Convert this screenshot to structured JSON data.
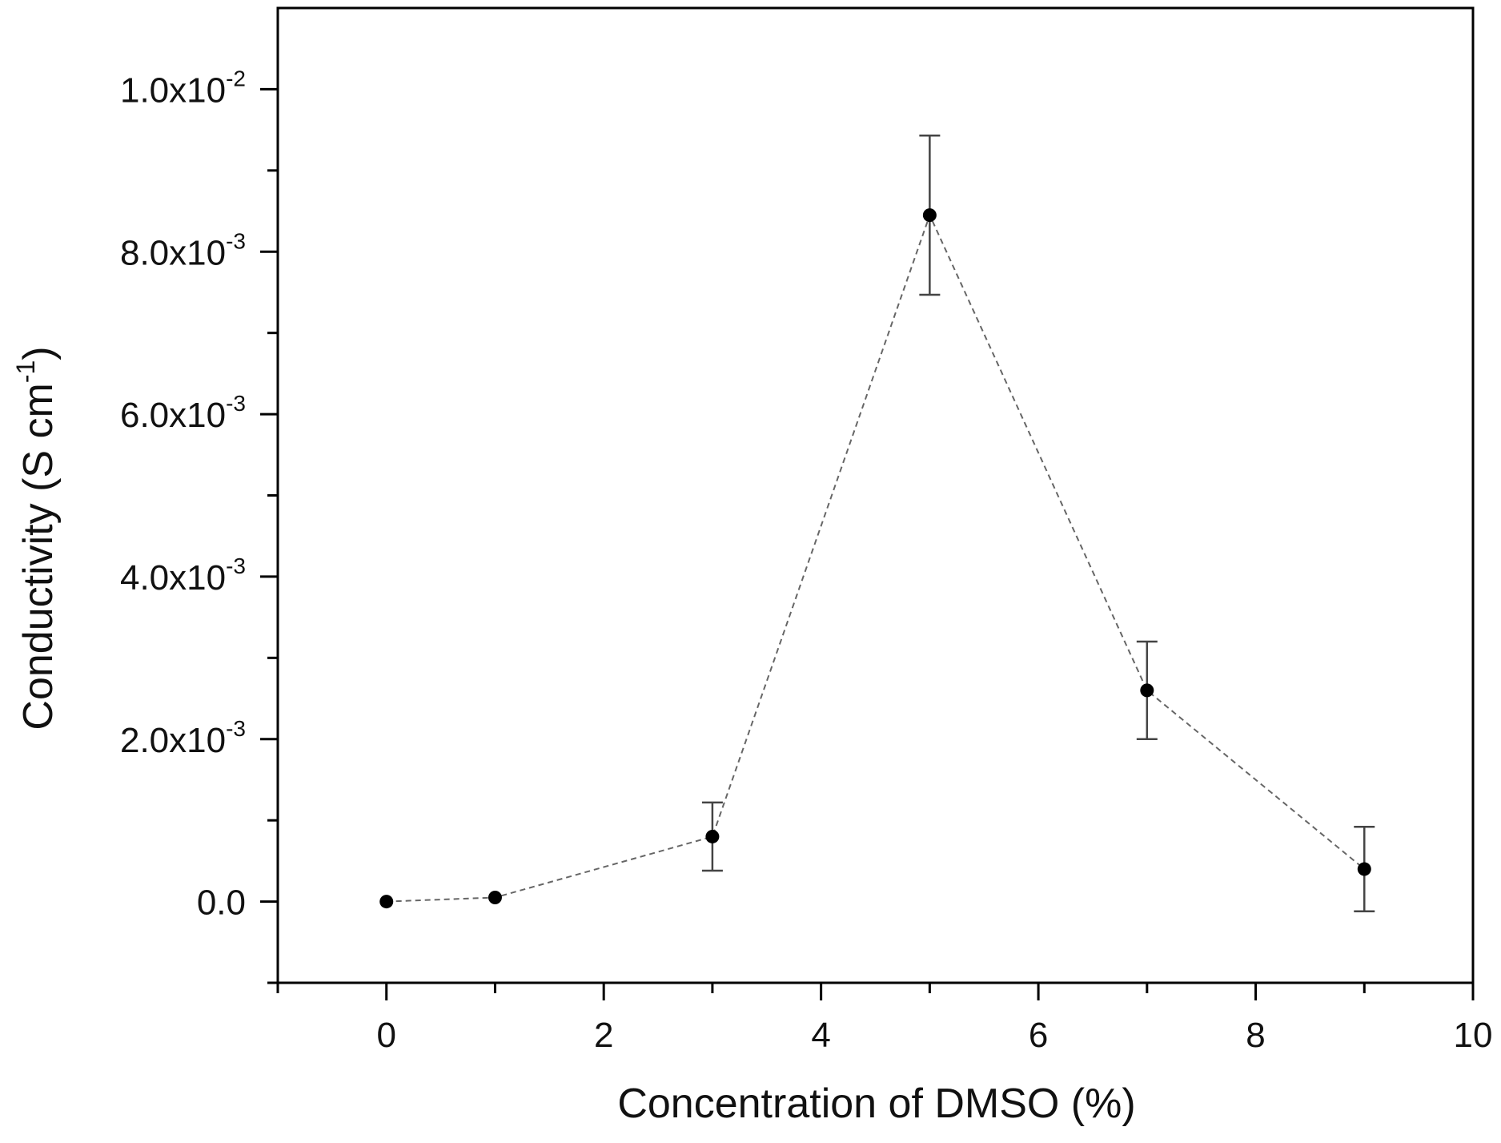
{
  "chart_data": {
    "type": "scatter",
    "title": "",
    "xlabel": "Concentration of DMSO (%)",
    "ylabel": {
      "main": "Conductivity (S cm",
      "superscript": "-1",
      "close": ")"
    },
    "xlim": [
      -1.0,
      10.0
    ],
    "ylim": [
      -0.001,
      0.011
    ],
    "x_ticks": [
      {
        "value": 0,
        "label": "0"
      },
      {
        "value": 2,
        "label": "2"
      },
      {
        "value": 4,
        "label": "4"
      },
      {
        "value": 6,
        "label": "6"
      },
      {
        "value": 8,
        "label": "8"
      },
      {
        "value": 10,
        "label": "10"
      }
    ],
    "x_minor_ticks": [
      -1,
      1,
      3,
      5,
      7,
      9
    ],
    "y_ticks": [
      {
        "value": 0.0,
        "mantissa": "0.0",
        "exponent": ""
      },
      {
        "value": 0.002,
        "mantissa": "2.0x10",
        "exponent": "-3"
      },
      {
        "value": 0.004,
        "mantissa": "4.0x10",
        "exponent": "-3"
      },
      {
        "value": 0.006,
        "mantissa": "6.0x10",
        "exponent": "-3"
      },
      {
        "value": 0.008,
        "mantissa": "8.0x10",
        "exponent": "-3"
      },
      {
        "value": 0.01,
        "mantissa": "1.0x10",
        "exponent": "-2"
      }
    ],
    "y_minor_ticks": [
      -0.001,
      0.001,
      0.003,
      0.005,
      0.007,
      0.009
    ],
    "series": [
      {
        "name": "Conductivity",
        "line_style": "dashed",
        "marker": "circle",
        "x": [
          0,
          1,
          3,
          5,
          7,
          9
        ],
        "y": [
          0.0,
          5e-05,
          0.0008,
          0.00845,
          0.0026,
          0.0004
        ],
        "error": [
          0,
          0,
          0.00042,
          0.00098,
          0.0006,
          0.00052
        ]
      }
    ],
    "grid": false,
    "colors": {
      "marker": "#000000",
      "line": "#666666",
      "error_bar": "#444444",
      "axis": "#000000"
    }
  }
}
